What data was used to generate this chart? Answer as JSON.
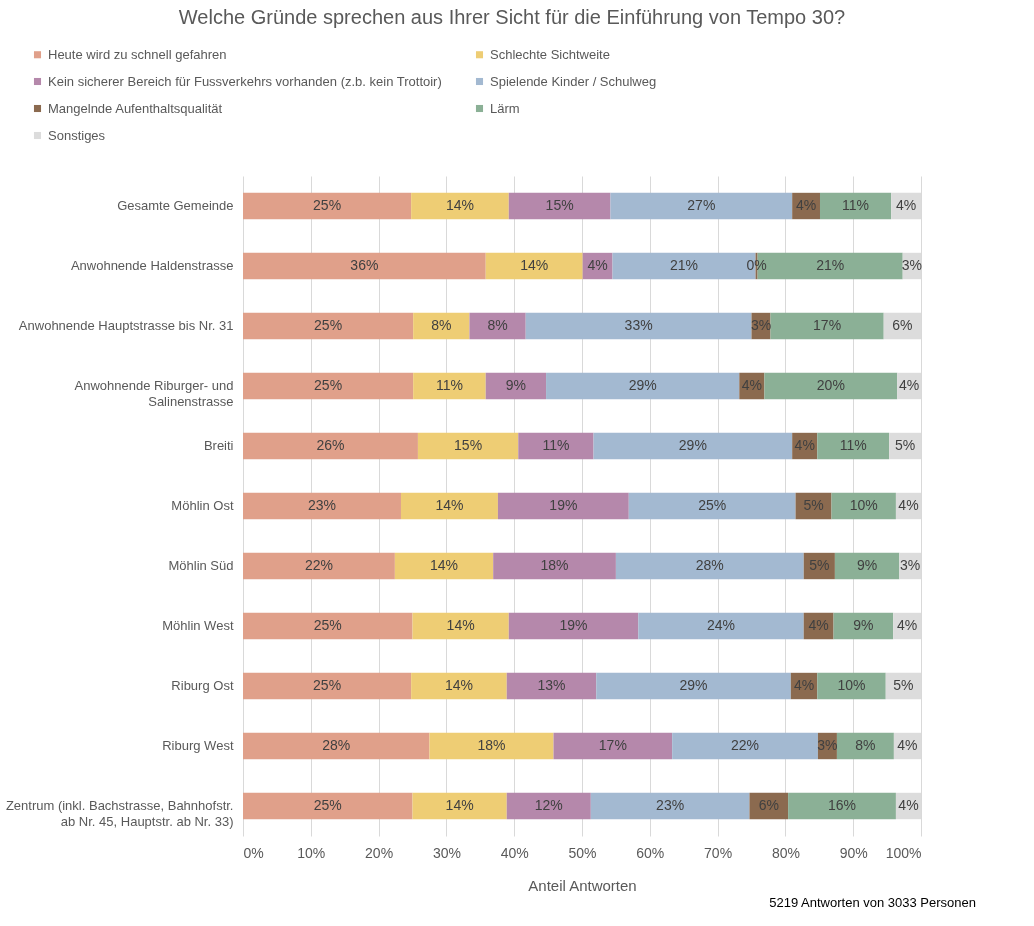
{
  "chart_data": {
    "type": "bar",
    "orientation": "horizontal",
    "stacked": true,
    "title": "Welche Gründe sprechen aus Ihrer Sicht für die Einführung von Tempo 30?",
    "xlabel": "Anteil Antworten",
    "annotations": [
      "5219 Antworten von 3033 Personen"
    ],
    "categories": [
      "Gesamte Gemeinde",
      "Anwohnende Haldenstrasse",
      "Anwohnende Hauptstrasse bis Nr. 31",
      "Anwohnende Riburger- und\nSalinenstrasse",
      "Breiti",
      "Möhlin Ost",
      "Möhlin Süd",
      "Möhlin West",
      "Riburg Ost",
      "Riburg West",
      "Zentrum (inkl. Bachstrasse, Bahnhofstr.\nab Nr. 45, Hauptstr. ab Nr. 33)"
    ],
    "xlim": [
      0,
      100
    ],
    "xticks": [
      {
        "value": 0,
        "label": "0%"
      },
      {
        "value": 10,
        "label": "10%"
      },
      {
        "value": 20,
        "label": "20%"
      },
      {
        "value": 30,
        "label": "30%"
      },
      {
        "value": 40,
        "label": "40%"
      },
      {
        "value": 50,
        "label": "50%"
      },
      {
        "value": 60,
        "label": "60%"
      },
      {
        "value": 70,
        "label": "70%"
      },
      {
        "value": 80,
        "label": "80%"
      },
      {
        "value": 90,
        "label": "90%"
      },
      {
        "value": 100,
        "label": "100%"
      }
    ],
    "grid": "x",
    "legend": "top",
    "series": [
      {
        "name": "Heute wird zu schnell gefahren",
        "color": "#e0a08a",
        "values": [
          24.8,
          35.8,
          25.1,
          25.1,
          25.8,
          23.3,
          22.4,
          25.0,
          24.8,
          27.5,
          25.0
        ],
        "value_labels": [
          "25%",
          "36%",
          "25%",
          "25%",
          "26%",
          "23%",
          "22%",
          "25%",
          "25%",
          "28%",
          "25%"
        ]
      },
      {
        "name": "Schlechte Sichtweite",
        "color": "#eecd74",
        "values": [
          14.4,
          14.3,
          8.3,
          10.7,
          14.8,
          14.3,
          14.5,
          14.2,
          14.1,
          18.3,
          13.9
        ],
        "value_labels": [
          "14%",
          "14%",
          "8%",
          "11%",
          "15%",
          "14%",
          "14%",
          "14%",
          "14%",
          "18%",
          "14%"
        ]
      },
      {
        "name": "Kein sicherer Bereich für Fussverkehrs vorhanden (z.b. kein Trottoir)",
        "color": "#b588ab",
        "values": [
          15.0,
          4.4,
          8.3,
          8.9,
          11.1,
          19.3,
          18.1,
          19.1,
          13.2,
          17.5,
          12.4
        ],
        "value_labels": [
          "15%",
          "4%",
          "8%",
          "9%",
          "11%",
          "19%",
          "18%",
          "19%",
          "13%",
          "17%",
          "12%"
        ]
      },
      {
        "name": "Spielende Kinder / Schulweg",
        "color": "#a3b9d1",
        "values": [
          26.8,
          21.1,
          33.3,
          28.5,
          29.3,
          24.6,
          27.7,
          24.4,
          28.7,
          21.5,
          23.4
        ],
        "value_labels": [
          "27%",
          "21%",
          "33%",
          "29%",
          "29%",
          "25%",
          "28%",
          "24%",
          "29%",
          "22%",
          "23%"
        ]
      },
      {
        "name": "Mangelnde Aufenthaltsqualität",
        "color": "#8b6a4f",
        "values": [
          4.1,
          0.3,
          2.8,
          3.7,
          3.7,
          5.3,
          4.6,
          4.4,
          3.9,
          2.8,
          5.7
        ],
        "value_labels": [
          "4%",
          "0%",
          "3%",
          "4%",
          "4%",
          "5%",
          "5%",
          "4%",
          "4%",
          "3%",
          "6%"
        ]
      },
      {
        "name": "Lärm",
        "color": "#8bb096",
        "values": [
          10.5,
          21.4,
          16.7,
          19.6,
          10.6,
          9.5,
          9.5,
          8.8,
          10.1,
          8.4,
          15.9
        ],
        "value_labels": [
          "11%",
          "21%",
          "17%",
          "20%",
          "11%",
          "10%",
          "9%",
          "9%",
          "10%",
          "8%",
          "16%"
        ]
      },
      {
        "name": "Sonstiges",
        "color": "#dcdcdc",
        "values": [
          4.4,
          2.7,
          5.5,
          3.5,
          4.7,
          3.7,
          3.2,
          4.1,
          5.2,
          4.0,
          3.7
        ],
        "value_labels": [
          "4%",
          "3%",
          "6%",
          "4%",
          "5%",
          "4%",
          "3%",
          "4%",
          "5%",
          "4%",
          "4%"
        ]
      }
    ]
  }
}
